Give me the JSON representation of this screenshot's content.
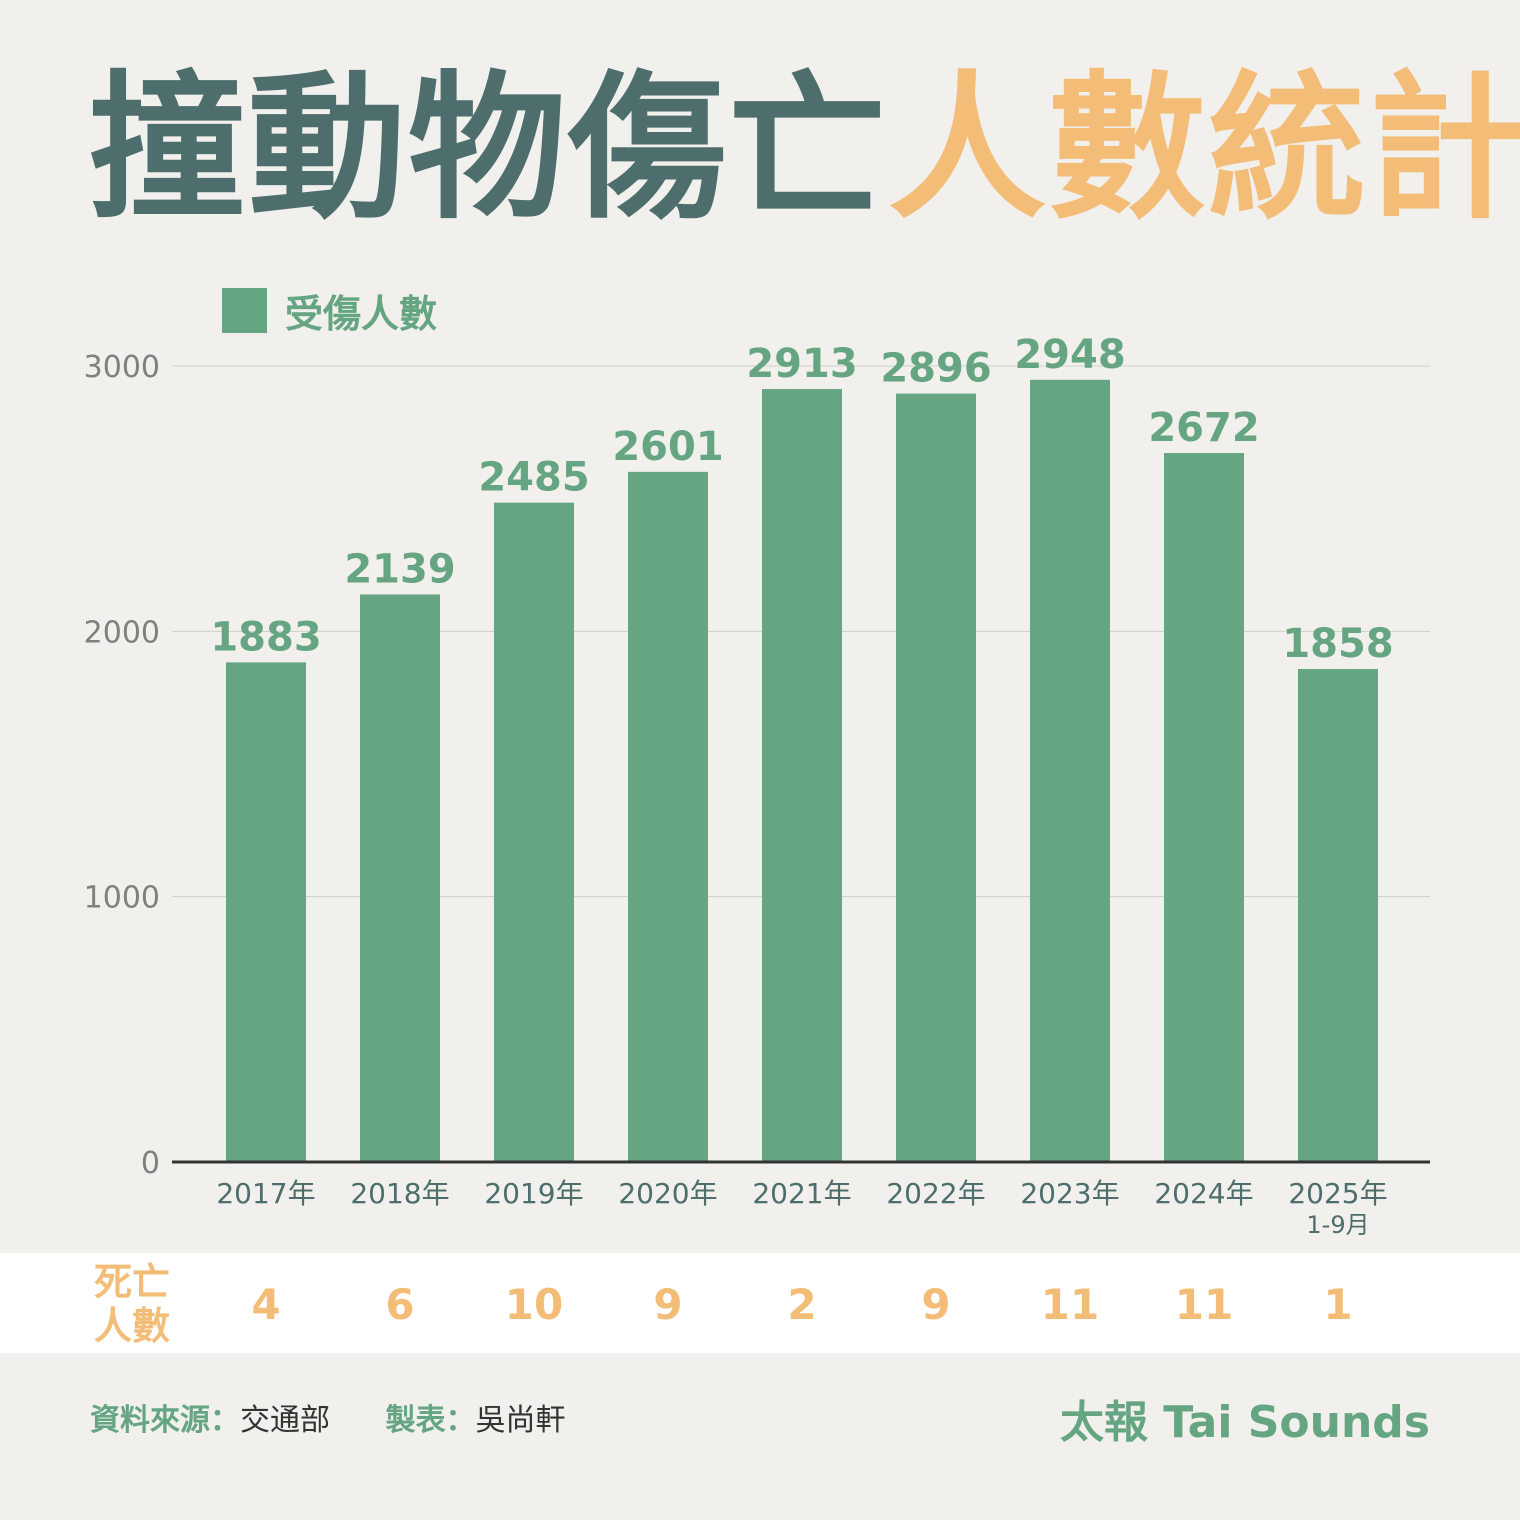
{
  "title": {
    "part1": "撞動物傷亡",
    "part2": "人數統計"
  },
  "colors": {
    "bar": "#65a582",
    "title_dark": "#4d6e6c",
    "accent": "#f3bd78"
  },
  "chart_data": {
    "type": "bar",
    "categories": [
      "2017年",
      "2018年",
      "2019年",
      "2020年",
      "2021年",
      "2022年",
      "2023年",
      "2024年",
      "2025年"
    ],
    "category_notes": [
      "",
      "",
      "",
      "",
      "",
      "",
      "",
      "",
      "1-9月"
    ],
    "series": [
      {
        "name": "受傷人數",
        "values": [
          1883,
          2139,
          2485,
          2601,
          2913,
          2896,
          2948,
          2672,
          1858
        ]
      }
    ],
    "yticks": [
      "0",
      "1000",
      "2000",
      "3000"
    ],
    "ylim": [
      0,
      3000
    ],
    "grid": true,
    "legend": "top-left"
  },
  "deaths": {
    "label_line1": "死亡",
    "label_line2": "人數",
    "values": [
      "4",
      "6",
      "10",
      "9",
      "2",
      "9",
      "11",
      "11",
      "1"
    ]
  },
  "footer": {
    "source_label": "資料來源：",
    "source_value": "交通部",
    "credit_label": "製表：",
    "credit_value": "吳尚軒",
    "brand": "太報 Tai Sounds"
  }
}
